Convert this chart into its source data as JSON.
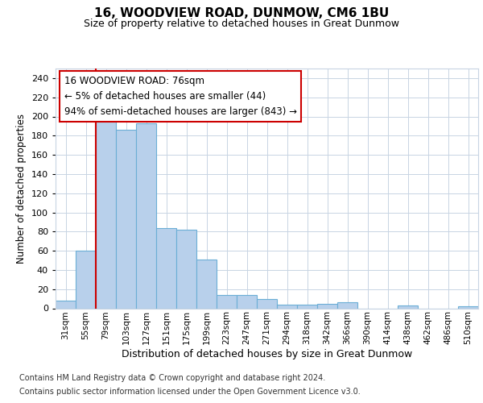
{
  "title1": "16, WOODVIEW ROAD, DUNMOW, CM6 1BU",
  "title2": "Size of property relative to detached houses in Great Dunmow",
  "xlabel": "Distribution of detached houses by size in Great Dunmow",
  "ylabel": "Number of detached properties",
  "bar_labels": [
    "31sqm",
    "55sqm",
    "79sqm",
    "103sqm",
    "127sqm",
    "151sqm",
    "175sqm",
    "199sqm",
    "223sqm",
    "247sqm",
    "271sqm",
    "294sqm",
    "318sqm",
    "342sqm",
    "366sqm",
    "390sqm",
    "414sqm",
    "438sqm",
    "462sqm",
    "486sqm",
    "510sqm"
  ],
  "bar_values": [
    8,
    60,
    202,
    186,
    193,
    84,
    82,
    51,
    14,
    14,
    10,
    4,
    4,
    5,
    6,
    0,
    0,
    3,
    0,
    0,
    2
  ],
  "bar_color": "#b8d0eb",
  "bar_edge_color": "#6baed6",
  "property_line_x": 1.5,
  "annotation_text": "16 WOODVIEW ROAD: 76sqm\n← 5% of detached houses are smaller (44)\n94% of semi-detached houses are larger (843) →",
  "annotation_box_color": "#ffffff",
  "annotation_box_edge_color": "#cc0000",
  "line_color": "#cc0000",
  "ylim": [
    0,
    250
  ],
  "yticks": [
    0,
    20,
    40,
    60,
    80,
    100,
    120,
    140,
    160,
    180,
    200,
    220,
    240
  ],
  "footnote1": "Contains HM Land Registry data © Crown copyright and database right 2024.",
  "footnote2": "Contains public sector information licensed under the Open Government Licence v3.0.",
  "bg_color": "#ffffff",
  "grid_color": "#c8d4e3"
}
